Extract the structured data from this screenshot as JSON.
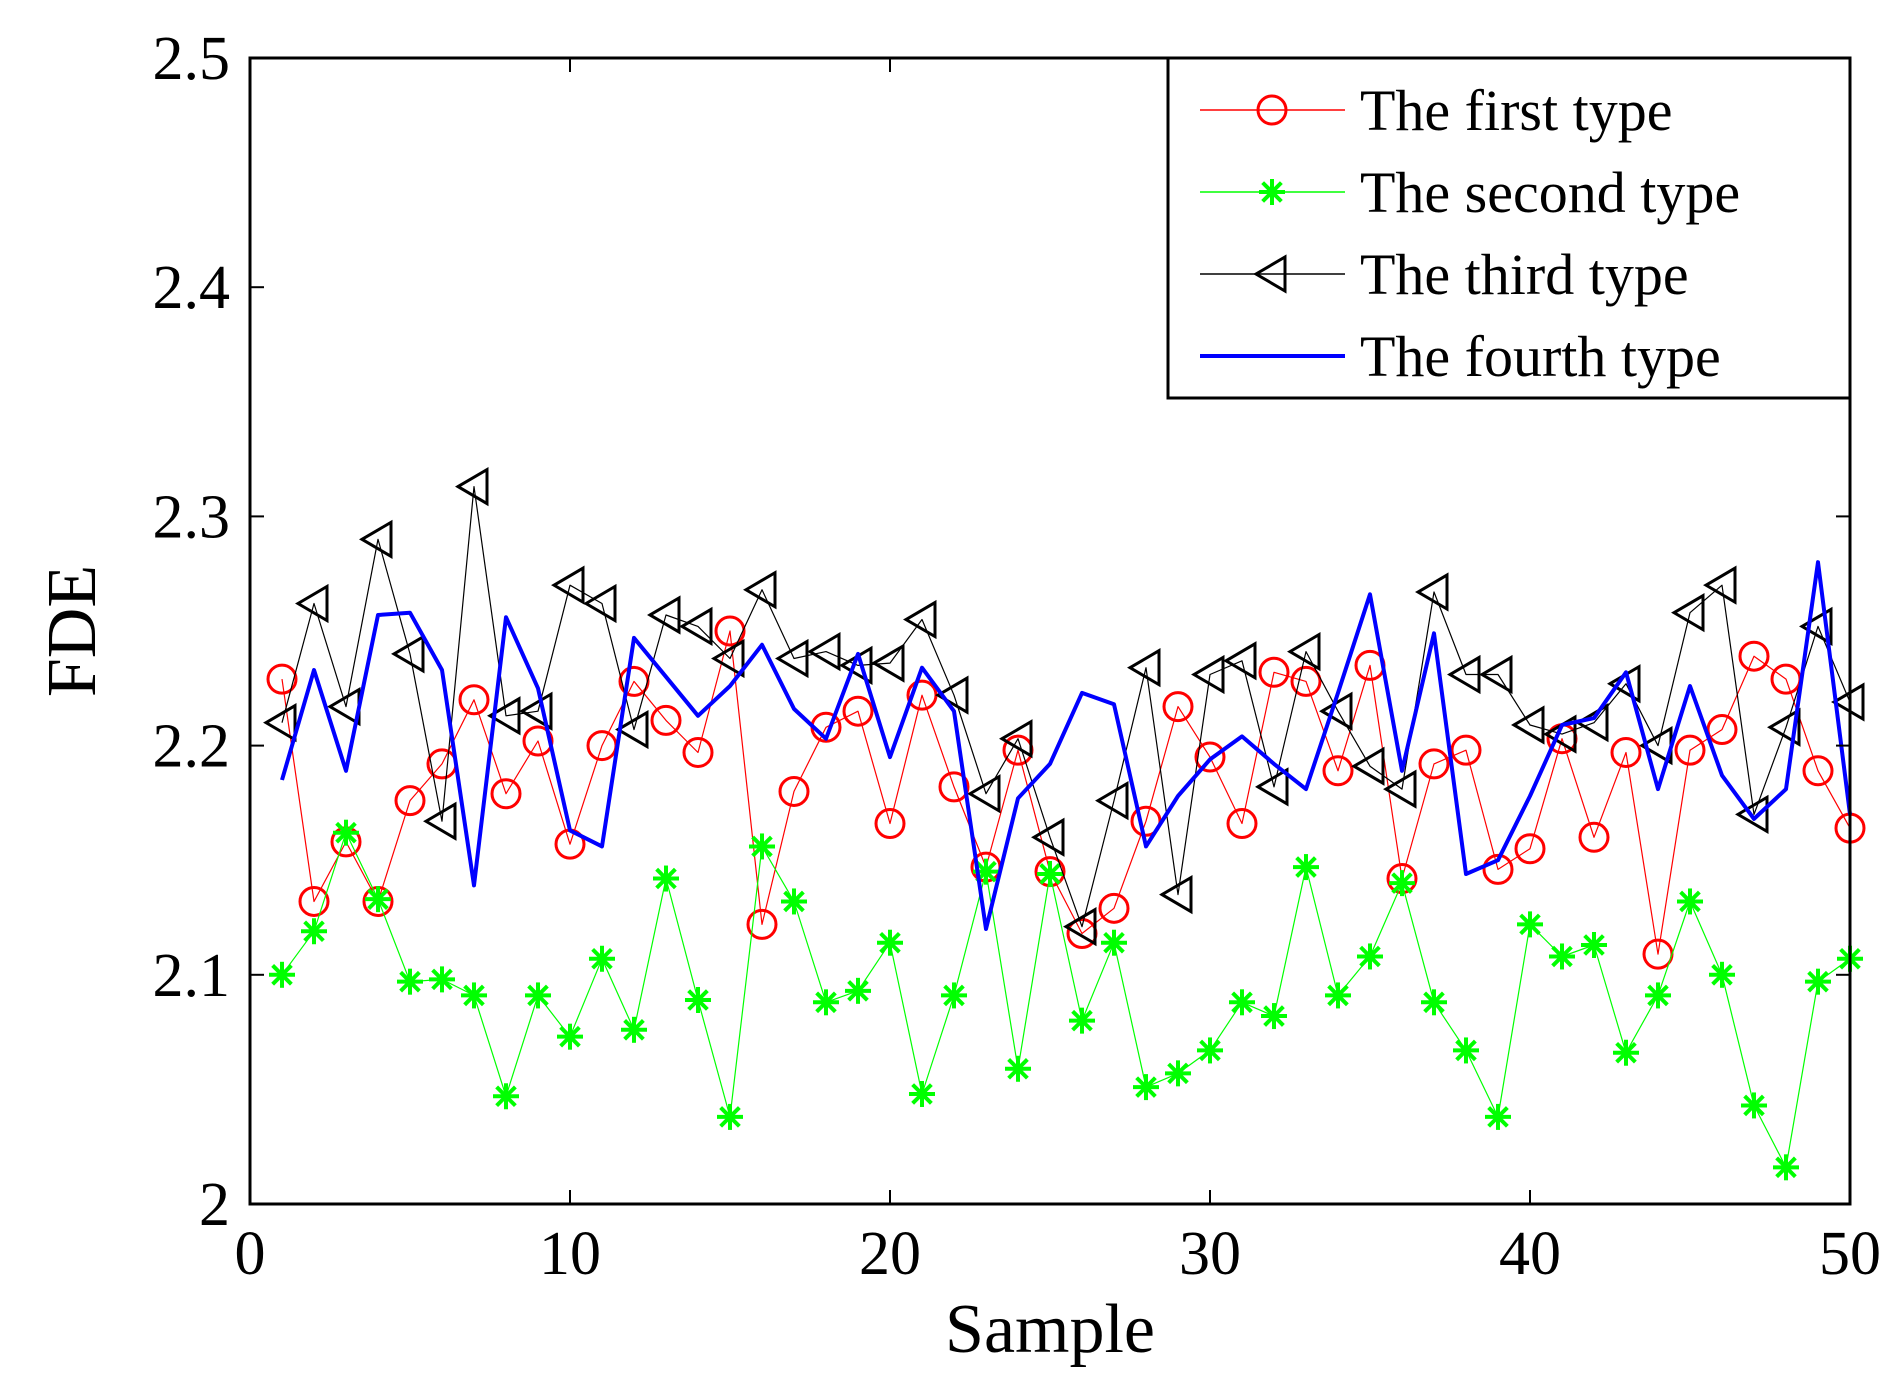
{
  "chart_data": {
    "type": "line",
    "title": "",
    "xlabel": "Sample",
    "ylabel": "FDE",
    "xlim": [
      0,
      50
    ],
    "ylim": [
      2.0,
      2.5
    ],
    "xticks": [
      0,
      10,
      20,
      30,
      40,
      50
    ],
    "xtick_labels": [
      "0",
      "10",
      "20",
      "30",
      "40",
      "50"
    ],
    "yticks": [
      2.0,
      2.1,
      2.2,
      2.3,
      2.4,
      2.5
    ],
    "ytick_labels": [
      "2",
      "2.1",
      "2.2",
      "2.3",
      "2.4",
      "2.5"
    ],
    "grid": false,
    "legend_position": "top-right",
    "x": [
      1,
      2,
      3,
      4,
      5,
      6,
      7,
      8,
      9,
      10,
      11,
      12,
      13,
      14,
      15,
      16,
      17,
      18,
      19,
      20,
      21,
      22,
      23,
      24,
      25,
      26,
      27,
      28,
      29,
      30,
      31,
      32,
      33,
      34,
      35,
      36,
      37,
      38,
      39,
      40,
      41,
      42,
      43,
      44,
      45,
      46,
      47,
      48,
      49,
      50
    ],
    "series": [
      {
        "name": "The first type",
        "color": "#ff0000",
        "marker": "circle",
        "values": [
          2.229,
          2.132,
          2.158,
          2.132,
          2.176,
          2.192,
          2.22,
          2.179,
          2.202,
          2.157,
          2.2,
          2.228,
          2.211,
          2.197,
          2.25,
          2.122,
          2.18,
          2.208,
          2.215,
          2.166,
          2.222,
          2.182,
          2.147,
          2.198,
          2.145,
          2.118,
          2.129,
          2.167,
          2.217,
          2.195,
          2.166,
          2.232,
          2.228,
          2.189,
          2.235,
          2.142,
          2.192,
          2.198,
          2.146,
          2.155,
          2.203,
          2.16,
          2.197,
          2.109,
          2.198,
          2.207,
          2.239,
          2.229,
          2.189,
          2.164
        ]
      },
      {
        "name": "The second type",
        "color": "#00ff00",
        "marker": "asterisk",
        "values": [
          2.1,
          2.119,
          2.162,
          2.133,
          2.097,
          2.098,
          2.091,
          2.047,
          2.091,
          2.073,
          2.107,
          2.076,
          2.142,
          2.089,
          2.038,
          2.156,
          2.132,
          2.088,
          2.093,
          2.114,
          2.048,
          2.091,
          2.145,
          2.059,
          2.144,
          2.08,
          2.114,
          2.051,
          2.057,
          2.067,
          2.088,
          2.082,
          2.147,
          2.091,
          2.108,
          2.14,
          2.088,
          2.067,
          2.038,
          2.122,
          2.108,
          2.113,
          2.066,
          2.091,
          2.132,
          2.1,
          2.043,
          2.016,
          2.097,
          2.107
        ]
      },
      {
        "name": "The third type",
        "color": "#000000",
        "marker": "triangle-left",
        "values": [
          2.21,
          2.262,
          2.217,
          2.29,
          2.24,
          2.167,
          2.313,
          2.213,
          2.215,
          2.27,
          2.262,
          2.207,
          2.257,
          2.252,
          2.238,
          2.268,
          2.238,
          2.241,
          2.235,
          2.236,
          2.255,
          2.222,
          2.179,
          2.203,
          2.16,
          2.121,
          2.176,
          2.234,
          2.135,
          2.231,
          2.237,
          2.182,
          2.241,
          2.215,
          2.191,
          2.181,
          2.267,
          2.231,
          2.231,
          2.209,
          2.205,
          2.21,
          2.227,
          2.2,
          2.258,
          2.27,
          2.17,
          2.208,
          2.252,
          2.219
        ]
      },
      {
        "name": "The fourth type",
        "color": "#0000ff",
        "marker": "none",
        "values": [
          2.185,
          2.233,
          2.189,
          2.257,
          2.258,
          2.233,
          2.139,
          2.256,
          2.225,
          2.163,
          2.156,
          2.247,
          2.23,
          2.213,
          2.226,
          2.244,
          2.216,
          2.203,
          2.24,
          2.195,
          2.234,
          2.215,
          2.12,
          2.177,
          2.192,
          2.223,
          2.218,
          2.156,
          2.178,
          2.194,
          2.204,
          2.192,
          2.181,
          2.223,
          2.266,
          2.189,
          2.249,
          2.144,
          2.15,
          2.178,
          2.209,
          2.212,
          2.232,
          2.181,
          2.226,
          2.187,
          2.168,
          2.181,
          2.28,
          2.17
        ]
      }
    ]
  }
}
